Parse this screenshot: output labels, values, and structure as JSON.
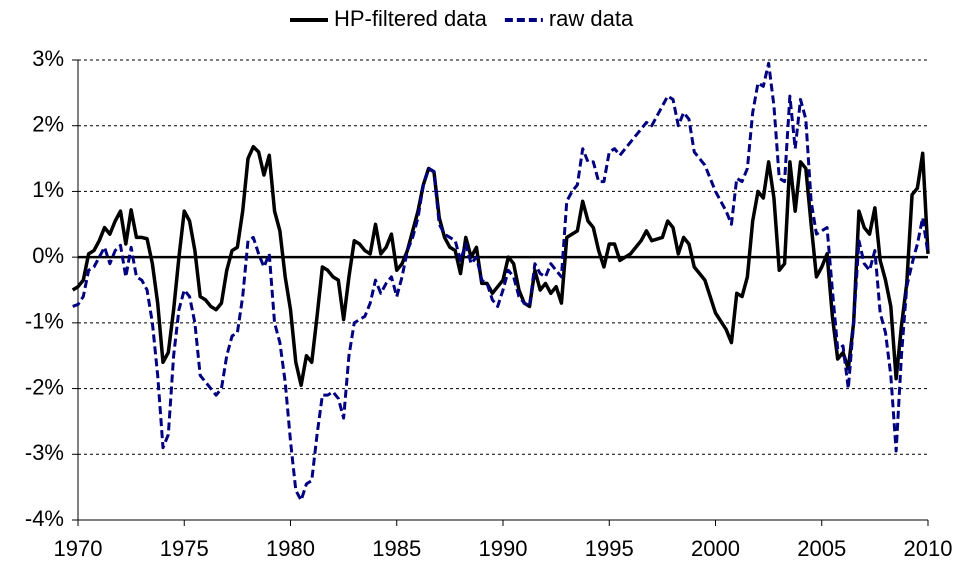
{
  "chart_data": {
    "type": "line",
    "xlim": [
      1970,
      2010
    ],
    "xticks": [
      1970,
      1975,
      1980,
      1985,
      1990,
      1995,
      2000,
      2005,
      2010
    ],
    "ylim": [
      -4,
      3
    ],
    "yticks": [
      {
        "value": -4,
        "label": "-4%"
      },
      {
        "value": -3,
        "label": "-3%"
      },
      {
        "value": -2,
        "label": "-2%"
      },
      {
        "value": -1,
        "label": "-1%"
      },
      {
        "value": 0,
        "label": "0%"
      },
      {
        "value": 1,
        "label": "1%"
      },
      {
        "value": 2,
        "label": "2%"
      },
      {
        "value": 3,
        "label": "3%"
      }
    ],
    "grid": true,
    "legend": "top",
    "series": [
      {
        "name": "HP-filtered data",
        "color": "#000000",
        "dashed": false,
        "x": [
          1969.75,
          1970,
          1970.25,
          1970.5,
          1970.75,
          1971,
          1971.25,
          1971.5,
          1971.75,
          1972,
          1972.25,
          1972.5,
          1972.75,
          1973,
          1973.25,
          1973.5,
          1973.75,
          1974,
          1974.25,
          1974.5,
          1974.75,
          1975,
          1975.25,
          1975.5,
          1975.75,
          1976,
          1976.25,
          1976.5,
          1976.75,
          1977,
          1977.25,
          1977.5,
          1977.75,
          1978,
          1978.25,
          1978.5,
          1978.75,
          1979,
          1979.25,
          1979.5,
          1979.75,
          1980,
          1980.25,
          1980.5,
          1980.75,
          1981,
          1981.25,
          1981.5,
          1981.75,
          1982,
          1982.25,
          1982.5,
          1982.75,
          1983,
          1983.25,
          1983.5,
          1983.75,
          1984,
          1984.25,
          1984.5,
          1984.75,
          1985,
          1985.25,
          1985.5,
          1985.75,
          1986,
          1986.25,
          1986.5,
          1986.75,
          1987,
          1987.25,
          1987.5,
          1987.75,
          1988,
          1988.25,
          1988.5,
          1988.75,
          1989,
          1989.25,
          1989.5,
          1989.75,
          1990,
          1990.25,
          1990.5,
          1990.75,
          1991,
          1991.25,
          1991.5,
          1991.75,
          1992,
          1992.25,
          1992.5,
          1992.75,
          1993,
          1993.25,
          1993.5,
          1993.75,
          1994,
          1994.25,
          1994.5,
          1994.75,
          1995,
          1995.25,
          1995.5,
          1996,
          1996.5,
          1996.75,
          1997,
          1997.5,
          1997.75,
          1998,
          1998.25,
          1998.5,
          1998.75,
          1999,
          1999.5,
          2000,
          2000.5,
          2000.75,
          2001,
          2001.25,
          2001.5,
          2001.75,
          2002,
          2002.25,
          2002.5,
          2002.75,
          2003,
          2003.25,
          2003.5,
          2003.75,
          2004,
          2004.25,
          2004.5,
          2004.75,
          2005,
          2005.25,
          2005.5,
          2005.75,
          2006,
          2006.25,
          2006.5,
          2006.75,
          2007,
          2007.25,
          2007.5,
          2007.75,
          2008,
          2008.25,
          2008.5,
          2008.75,
          2009,
          2009.25,
          2009.5,
          2009.75,
          2010
        ],
        "values": [
          -0.5,
          -0.45,
          -0.35,
          0.05,
          0.1,
          0.25,
          0.45,
          0.35,
          0.55,
          0.7,
          0.2,
          0.72,
          0.3,
          0.3,
          0.28,
          -0.1,
          -0.7,
          -1.6,
          -1.45,
          -0.8,
          0,
          0.7,
          0.55,
          0.1,
          -0.6,
          -0.65,
          -0.75,
          -0.8,
          -0.7,
          -0.2,
          0.1,
          0.15,
          0.7,
          1.5,
          1.68,
          1.6,
          1.25,
          1.55,
          0.7,
          0.4,
          -0.3,
          -0.8,
          -1.6,
          -1.95,
          -1.5,
          -1.6,
          -0.9,
          -0.15,
          -0.2,
          -0.3,
          -0.35,
          -0.95,
          -0.3,
          0.25,
          0.2,
          0.1,
          0.05,
          0.5,
          0.05,
          0.15,
          0.35,
          -0.2,
          -0.1,
          0.1,
          0.4,
          0.7,
          1.1,
          1.35,
          1.3,
          0.6,
          0.3,
          0.15,
          0.1,
          -0.25,
          0.3,
          0,
          0.15,
          -0.4,
          -0.4,
          -0.55,
          -0.45,
          -0.35,
          0,
          -0.1,
          -0.5,
          -0.7,
          -0.75,
          -0.2,
          -0.5,
          -0.4,
          -0.55,
          -0.45,
          -0.7,
          0.3,
          0.35,
          0.4,
          0.85,
          0.55,
          0.45,
          0.1,
          -0.15,
          0.2,
          0.2,
          -0.05,
          0.05,
          0.25,
          0.4,
          0.25,
          0.3,
          0.55,
          0.45,
          0.05,
          0.3,
          0.2,
          -0.15,
          -0.35,
          -0.85,
          -1.1,
          -1.3,
          -0.55,
          -0.6,
          -0.3,
          0.55,
          1,
          0.9,
          1.45,
          0.9,
          -0.2,
          -0.1,
          1.45,
          0.7,
          1.45,
          1.35,
          0.5,
          -0.3,
          -0.15,
          0.05,
          -0.9,
          -1.55,
          -1.45,
          -1.7,
          -1,
          0.7,
          0.45,
          0.35,
          0.75,
          -0.05,
          -0.35,
          -0.75,
          -1.85,
          -1.05,
          -0.4,
          0.95,
          1.05,
          1.58,
          0.05
        ]
      },
      {
        "name": "raw data",
        "color": "#000080",
        "dashed": true,
        "x": [
          1969.75,
          1970,
          1970.25,
          1970.5,
          1970.75,
          1971,
          1971.25,
          1971.5,
          1971.75,
          1972,
          1972.25,
          1972.5,
          1972.75,
          1973,
          1973.25,
          1973.5,
          1973.75,
          1974,
          1974.25,
          1974.5,
          1974.75,
          1975,
          1975.25,
          1975.5,
          1975.75,
          1976,
          1976.25,
          1976.5,
          1976.75,
          1977,
          1977.25,
          1977.5,
          1977.75,
          1978,
          1978.25,
          1978.5,
          1978.75,
          1979,
          1979.25,
          1979.5,
          1979.75,
          1980,
          1980.25,
          1980.5,
          1980.75,
          1981,
          1981.25,
          1981.5,
          1981.75,
          1982,
          1982.25,
          1982.5,
          1982.75,
          1983,
          1983.25,
          1983.5,
          1983.75,
          1984,
          1984.25,
          1984.5,
          1984.75,
          1985,
          1985.25,
          1985.5,
          1985.75,
          1986,
          1986.25,
          1986.5,
          1986.75,
          1987,
          1987.25,
          1987.5,
          1987.75,
          1988,
          1988.25,
          1988.5,
          1988.75,
          1989,
          1989.25,
          1989.5,
          1989.75,
          1990,
          1990.25,
          1990.5,
          1990.75,
          1991,
          1991.25,
          1991.5,
          1991.75,
          1992,
          1992.25,
          1992.5,
          1992.75,
          1993,
          1993.25,
          1993.5,
          1993.75,
          1994,
          1994.25,
          1994.5,
          1994.75,
          1995,
          1995.25,
          1995.5,
          1996,
          1996.5,
          1996.75,
          1997,
          1997.5,
          1997.75,
          1998,
          1998.25,
          1998.5,
          1998.75,
          1999,
          1999.5,
          2000,
          2000.5,
          2000.75,
          2001,
          2001.25,
          2001.5,
          2001.75,
          2002,
          2002.25,
          2002.5,
          2002.75,
          2003,
          2003.25,
          2003.5,
          2003.75,
          2004,
          2004.25,
          2004.5,
          2004.75,
          2005,
          2005.25,
          2005.5,
          2005.75,
          2006,
          2006.25,
          2006.5,
          2006.75,
          2007,
          2007.25,
          2007.5,
          2007.75,
          2008,
          2008.25,
          2008.5,
          2008.75,
          2009,
          2009.25,
          2009.5,
          2009.75,
          2010
        ],
        "values": [
          -0.75,
          -0.72,
          -0.6,
          -0.2,
          -0.15,
          0,
          0.15,
          -0.1,
          0.1,
          0.18,
          -0.3,
          0.15,
          -0.3,
          -0.35,
          -0.5,
          -1,
          -1.8,
          -2.9,
          -2.7,
          -1.5,
          -0.8,
          -0.5,
          -0.6,
          -1,
          -1.8,
          -1.9,
          -2,
          -2.1,
          -2,
          -1.5,
          -1.2,
          -1.15,
          -0.6,
          0.25,
          0.3,
          0.05,
          -0.15,
          0.05,
          -1,
          -1.3,
          -1.9,
          -2.8,
          -3.55,
          -3.7,
          -3.45,
          -3.4,
          -2.7,
          -2.1,
          -2.1,
          -2.05,
          -2.15,
          -2.45,
          -1.5,
          -1,
          -0.95,
          -0.9,
          -0.7,
          -0.35,
          -0.55,
          -0.4,
          -0.3,
          -0.6,
          -0.3,
          0.1,
          0.3,
          0.6,
          1.1,
          1.35,
          1.3,
          0.5,
          0.35,
          0.3,
          0.25,
          -0.05,
          0.2,
          -0.1,
          0,
          -0.35,
          -0.4,
          -0.65,
          -0.75,
          -0.5,
          -0.2,
          -0.3,
          -0.6,
          -0.7,
          -0.75,
          -0.1,
          -0.25,
          -0.3,
          -0.1,
          -0.2,
          -0.3,
          0.85,
          1,
          1.1,
          1.65,
          1.45,
          1.45,
          1.15,
          1.15,
          1.6,
          1.65,
          1.55,
          1.75,
          1.95,
          2.05,
          2,
          2.3,
          2.45,
          2.4,
          2,
          2.2,
          2.1,
          1.6,
          1.4,
          1,
          0.7,
          0.5,
          1.2,
          1.15,
          1.35,
          2.2,
          2.65,
          2.6,
          2.95,
          2.3,
          1.2,
          1.15,
          2.45,
          1.65,
          2.4,
          2.1,
          0.85,
          0.35,
          0.4,
          0.45,
          -0.5,
          -1.4,
          -1.35,
          -2,
          -1,
          0.25,
          -0.1,
          -0.2,
          0.1,
          -0.85,
          -1.15,
          -1.8,
          -2.95,
          -1.5,
          -0.45,
          -0.1,
          0.2,
          0.6,
          0.05
        ]
      }
    ]
  }
}
